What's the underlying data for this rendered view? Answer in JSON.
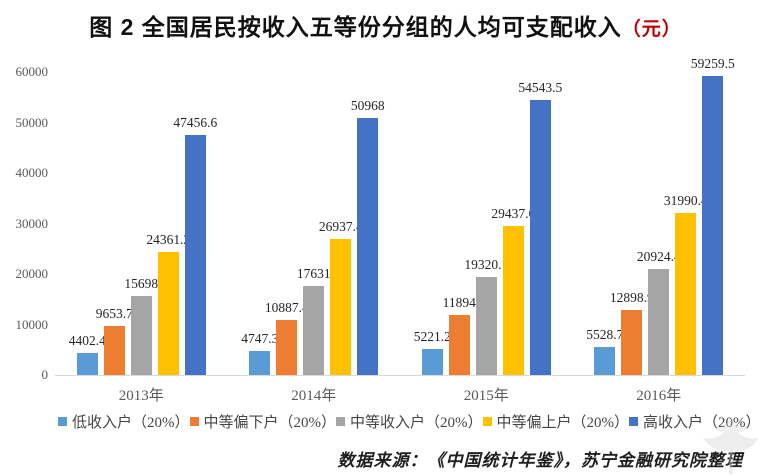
{
  "title": {
    "text": "图 2  全国居民按收入五等份分组的人均可支配收入",
    "unit": "（元）",
    "unit_color": "#C00000"
  },
  "source": "数据来源：《中国统计年鉴》，苏宁金融研究院整理",
  "icons": {
    "watermark": "brand-logo-watermark"
  },
  "chart_data": {
    "type": "bar",
    "title": "图 2 全国居民按收入五等份分组的人均可支配收入（元）",
    "categories": [
      "2013年",
      "2014年",
      "2015年",
      "2016年"
    ],
    "series": [
      {
        "name": "低收入户（20%）",
        "color": "#5B9BD5",
        "values": [
          4402.4,
          4747.3,
          5221.2,
          5528.7
        ]
      },
      {
        "name": "中等偏下户（20%）",
        "color": "#ED7D31",
        "values": [
          9653.7,
          10887.4,
          11894,
          12898.9
        ]
      },
      {
        "name": "中等收入户（20%）",
        "color": "#A5A5A5",
        "values": [
          15698,
          17631,
          19320.1,
          20924.4
        ]
      },
      {
        "name": "中等偏上户（20%）",
        "color": "#FFC000",
        "values": [
          24361.2,
          26937.4,
          29437.6,
          31990.4
        ]
      },
      {
        "name": "高收入户（20%）",
        "color": "#4472C4",
        "values": [
          47456.6,
          50968,
          54543.5,
          59259.5
        ]
      }
    ],
    "xlabel": "",
    "ylabel": "",
    "ylim": [
      0,
      60000
    ],
    "yticks": [
      0,
      10000,
      20000,
      30000,
      40000,
      50000,
      60000
    ],
    "grid": false,
    "data_labels": true,
    "legend_position": "bottom",
    "axis_line_color": "#D9D9D9"
  }
}
